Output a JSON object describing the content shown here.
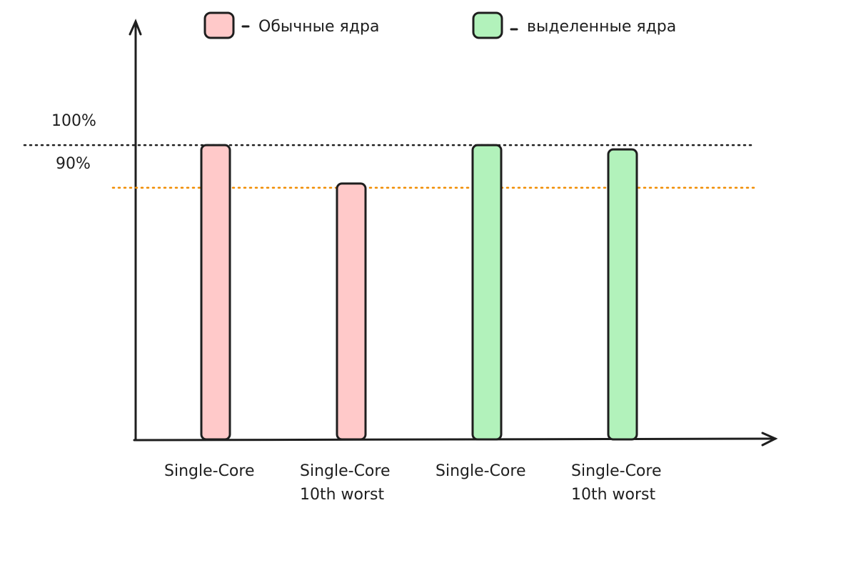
{
  "chart_data": {
    "type": "bar",
    "categories": [
      "Single-Core",
      "Single-Core\n10th worst",
      "Single-Core",
      "Single-Core\n10th worst"
    ],
    "series": [
      {
        "name": "Обычные ядра",
        "color": "#ffc9c9",
        "values": [
          100,
          91,
          null,
          null
        ]
      },
      {
        "name": "выделенные ядра",
        "color": "#b2f2bb",
        "values": [
          null,
          null,
          100,
          99
        ]
      }
    ],
    "ylim": [
      31,
      129
    ],
    "yticks": [
      {
        "value": 100,
        "label": "100%"
      },
      {
        "value": 90,
        "label": "90%"
      }
    ],
    "reference_line_colors": [
      "#1e1e1e",
      "#f08c00"
    ],
    "legend": "top"
  }
}
